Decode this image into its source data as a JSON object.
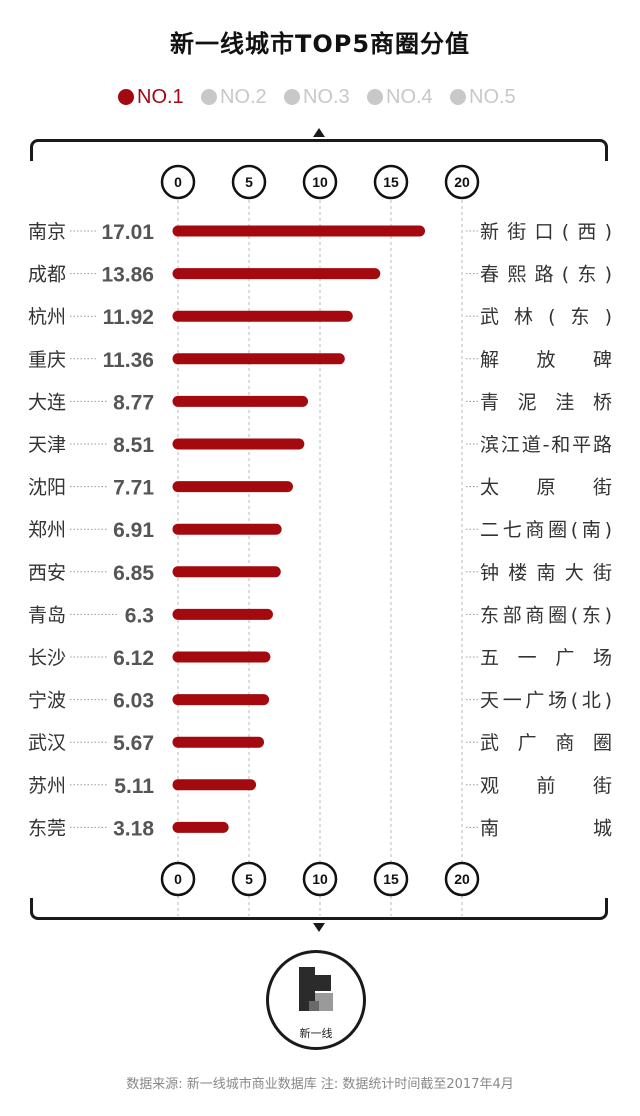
{
  "title": "新一线城市TOP5商圈分值",
  "legend": [
    {
      "label": "NO.1",
      "color": "#a3090e"
    },
    {
      "label": "NO.2",
      "color": "#c8c8c8"
    },
    {
      "label": "NO.3",
      "color": "#c8c8c8"
    },
    {
      "label": "NO.4",
      "color": "#c8c8c8"
    },
    {
      "label": "NO.5",
      "color": "#c8c8c8"
    }
  ],
  "chart_data": {
    "type": "bar",
    "orientation": "horizontal",
    "categories": [
      "南京",
      "成都",
      "杭州",
      "重庆",
      "大连",
      "天津",
      "沈阳",
      "郑州",
      "西安",
      "青岛",
      "长沙",
      "宁波",
      "武汉",
      "苏州",
      "东莞"
    ],
    "value_labels": [
      "17.01",
      "13.86",
      "11.92",
      "11.36",
      "8.77",
      "8.51",
      "7.71",
      "6.91",
      "6.85",
      "6.3",
      "6.12",
      "6.03",
      "5.67",
      "5.11",
      "3.18"
    ],
    "values": [
      17.01,
      13.86,
      11.92,
      11.36,
      8.77,
      8.51,
      7.71,
      6.91,
      6.85,
      6.3,
      6.12,
      6.03,
      5.67,
      5.11,
      3.18
    ],
    "districts": [
      "新街口(西)",
      "春熙路(东)",
      "武林(东)",
      "解放碑",
      "青泥洼桥",
      "滨江道-和平路",
      "太原街",
      "二七商圈(南)",
      "钟楼南大街",
      "东部商圈(东)",
      "五一广场",
      "天一广场(北)",
      "武广商圈",
      "观前街",
      "南城"
    ],
    "ticks": [
      0,
      5,
      10,
      15,
      20
    ],
    "tick_labels": [
      "0",
      "5",
      "10",
      "15",
      "20"
    ],
    "xlim": [
      0,
      20
    ],
    "bar_color": "#a3090e",
    "grid": true
  },
  "logo": {
    "text": "新一线"
  },
  "source": "数据来源: 新一线城市商业数据库 注: 数据统计时间截至2017年4月"
}
